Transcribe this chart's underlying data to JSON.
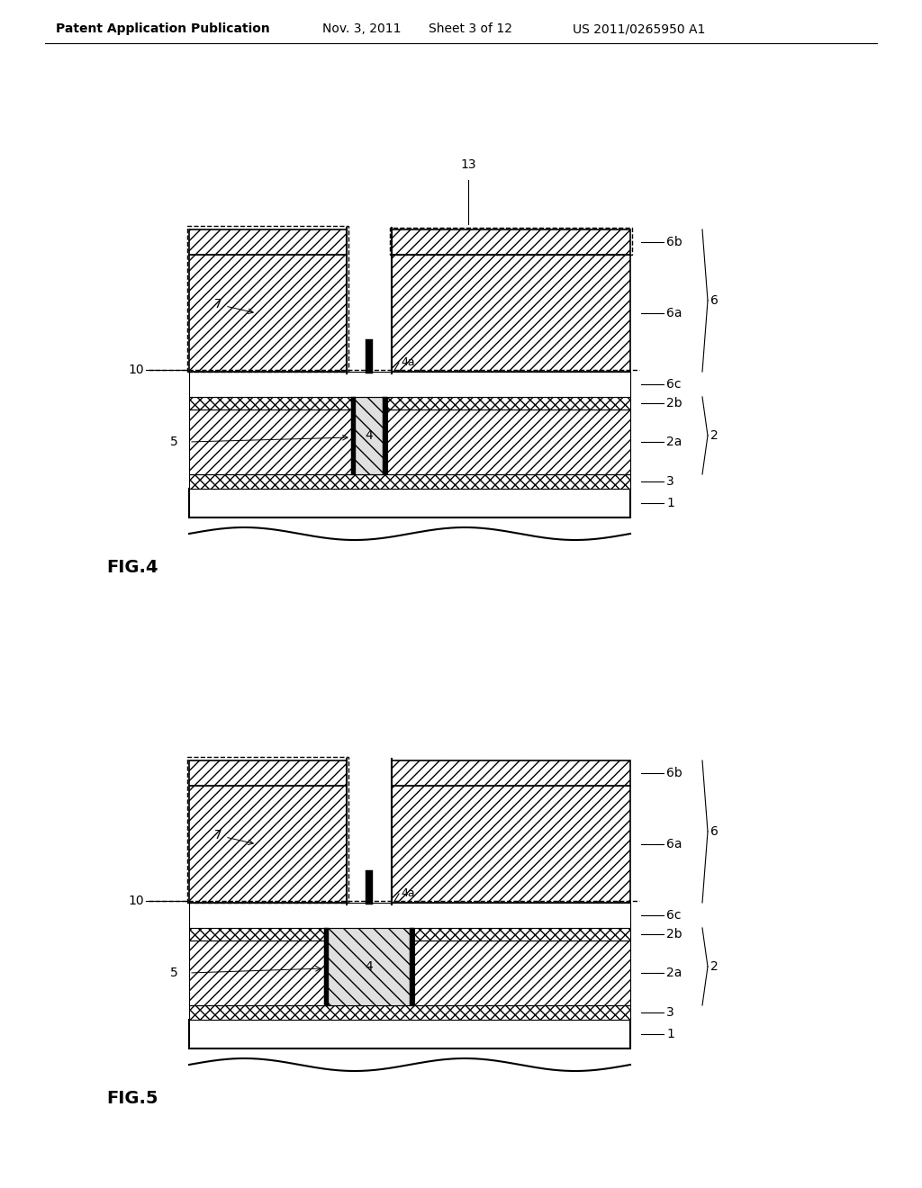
{
  "bg_color": "#ffffff",
  "header_text": "Patent Application Publication",
  "header_date": "Nov. 3, 2011",
  "header_sheet": "Sheet 3 of 12",
  "header_patent": "US 2011/0265950 A1",
  "fig4_label": "FIG.4",
  "fig5_label": "FIG.5",
  "line_color": "#000000"
}
